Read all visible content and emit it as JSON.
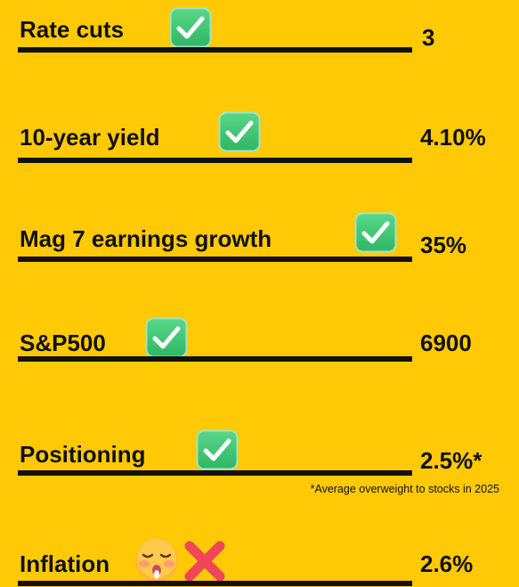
{
  "rows": [
    {
      "label": "Rate cuts",
      "value": "3"
    },
    {
      "label": "10-year yield",
      "value": "4.10%"
    },
    {
      "label": "Mag 7 earnings growth",
      "value": "35%"
    },
    {
      "label": "S&P500",
      "value": "6900"
    },
    {
      "label": "Positioning",
      "value": "2.5%*"
    },
    {
      "label": "Inflation",
      "value": "2.6%"
    }
  ],
  "footnote": "*Average overweight to stocks in 2025"
}
